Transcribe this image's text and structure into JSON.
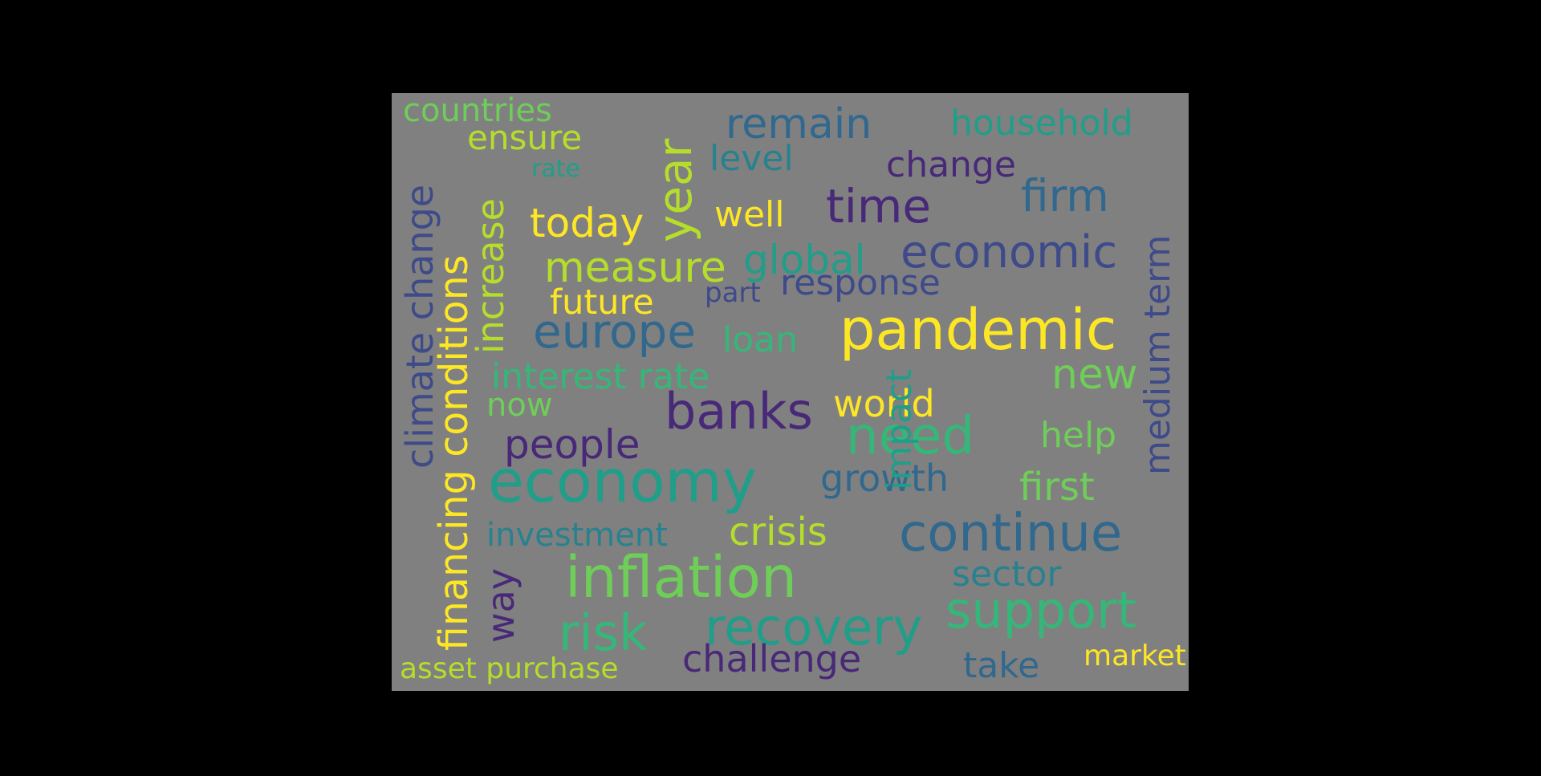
{
  "background_color": "#808080",
  "frame_color": "#000000",
  "palette": {
    "dark_purple": "#482878",
    "indigo": "#3e4a89",
    "blue": "#31688e",
    "teal": "#26828e",
    "green_teal": "#1f9e89",
    "green": "#35b779",
    "light_green": "#6ece58",
    "lime": "#b5de2b",
    "yellow": "#fde725"
  },
  "words": [
    {
      "text": "countries",
      "color": "#6ece58"
    },
    {
      "text": "ensure",
      "color": "#b5de2b"
    },
    {
      "text": "rate",
      "color": "#1f9e89"
    },
    {
      "text": "remain",
      "color": "#31688e"
    },
    {
      "text": "household",
      "color": "#1f9e89"
    },
    {
      "text": "level",
      "color": "#26828e"
    },
    {
      "text": "change",
      "color": "#482878"
    },
    {
      "text": "year",
      "color": "#b5de2b"
    },
    {
      "text": "today",
      "color": "#fde725"
    },
    {
      "text": "well",
      "color": "#fde725"
    },
    {
      "text": "time",
      "color": "#482878"
    },
    {
      "text": "firm",
      "color": "#31688e"
    },
    {
      "text": "measure",
      "color": "#b5de2b"
    },
    {
      "text": "global",
      "color": "#1f9e89"
    },
    {
      "text": "economic",
      "color": "#3e4a89"
    },
    {
      "text": "response",
      "color": "#3e4a89"
    },
    {
      "text": "future",
      "color": "#fde725"
    },
    {
      "text": "part",
      "color": "#3e4a89"
    },
    {
      "text": "europe",
      "color": "#31688e"
    },
    {
      "text": "loan",
      "color": "#35b779"
    },
    {
      "text": "pandemic",
      "color": "#fde725"
    },
    {
      "text": "interest rate",
      "color": "#35b779"
    },
    {
      "text": "new",
      "color": "#6ece58"
    },
    {
      "text": "now",
      "color": "#6ece58"
    },
    {
      "text": "banks",
      "color": "#482878"
    },
    {
      "text": "world",
      "color": "#fde725"
    },
    {
      "text": "people",
      "color": "#482878"
    },
    {
      "text": "need",
      "color": "#35b779"
    },
    {
      "text": "help",
      "color": "#6ece58"
    },
    {
      "text": "economy",
      "color": "#1f9e89"
    },
    {
      "text": "growth",
      "color": "#31688e"
    },
    {
      "text": "first",
      "color": "#6ece58"
    },
    {
      "text": "investment",
      "color": "#26828e"
    },
    {
      "text": "crisis",
      "color": "#b5de2b"
    },
    {
      "text": "continue",
      "color": "#31688e"
    },
    {
      "text": "inflation",
      "color": "#6ece58"
    },
    {
      "text": "sector",
      "color": "#26828e"
    },
    {
      "text": "risk",
      "color": "#35b779"
    },
    {
      "text": "recovery",
      "color": "#1f9e89"
    },
    {
      "text": "support",
      "color": "#35b779"
    },
    {
      "text": "challenge",
      "color": "#482878"
    },
    {
      "text": "take",
      "color": "#31688e"
    },
    {
      "text": "market",
      "color": "#fde725"
    },
    {
      "text": "asset purchase",
      "color": "#b5de2b"
    },
    {
      "text": "climate change",
      "color": "#3e4a89"
    },
    {
      "text": "financing conditions",
      "color": "#fde725"
    },
    {
      "text": "increase",
      "color": "#b5de2b"
    },
    {
      "text": "way",
      "color": "#482878"
    },
    {
      "text": "impact",
      "color": "#1f9e89"
    },
    {
      "text": "medium term",
      "color": "#3e4a89"
    }
  ]
}
